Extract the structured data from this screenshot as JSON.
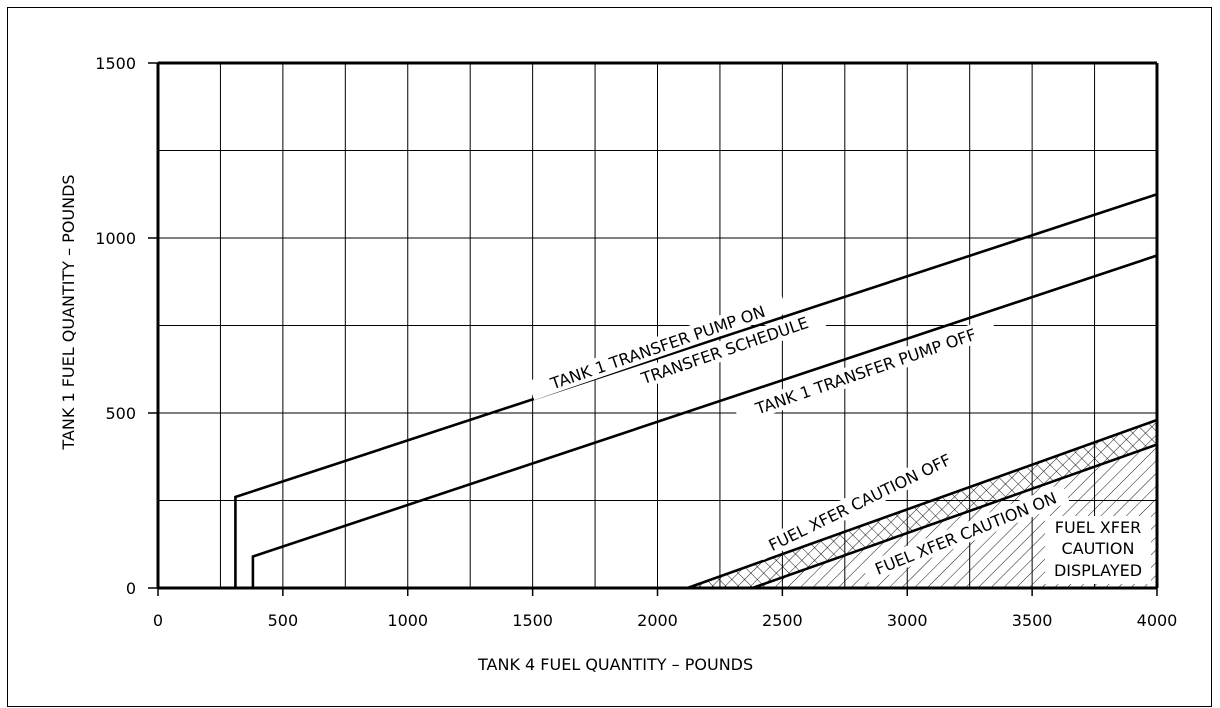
{
  "chart_data": {
    "type": "line",
    "title": "",
    "xlabel": "TANK 4 FUEL QUANTITY – POUNDS",
    "ylabel": "TANK 1 FUEL QUANTITY – POUNDS",
    "xlim": [
      0,
      4000
    ],
    "ylim": [
      0,
      1500
    ],
    "x_ticks": [
      0,
      500,
      1000,
      1500,
      2000,
      2500,
      3000,
      3500,
      4000
    ],
    "y_ticks": [
      0,
      500,
      1000,
      1500
    ],
    "x_tick_labels": [
      "0",
      "500",
      "1000",
      "1500",
      "2000",
      "2500",
      "3000",
      "3500",
      "4000"
    ],
    "y_tick_labels": [
      "0",
      "500",
      "1000",
      "1500"
    ],
    "grid": true,
    "series": [
      {
        "name": "TANK 1 TRANSFER PUMP ON",
        "x": [
          310,
          310,
          4000
        ],
        "y": [
          0,
          260,
          1125
        ]
      },
      {
        "name": "TANK 1 TRANSFER PUMP OFF",
        "x": [
          380,
          380,
          4000
        ],
        "y": [
          0,
          90,
          950
        ]
      },
      {
        "name": "FUEL XFER CAUTION OFF",
        "x": [
          2120,
          4000
        ],
        "y": [
          0,
          480
        ]
      },
      {
        "name": "FUEL XFER CAUTION ON",
        "x": [
          2380,
          4000
        ],
        "y": [
          0,
          410
        ]
      }
    ],
    "annotations": {
      "pump_on": "TANK 1 TRANSFER PUMP ON",
      "schedule": "TRANSFER SCHEDULE",
      "pump_off": "TANK 1 TRANSFER PUMP OFF",
      "caution_off": "FUEL XFER CAUTION OFF",
      "caution_on": "FUEL XFER CAUTION ON",
      "caution_displayed_1": "FUEL XFER",
      "caution_displayed_2": "CAUTION",
      "caution_displayed_3": "DISPLAYED"
    }
  }
}
